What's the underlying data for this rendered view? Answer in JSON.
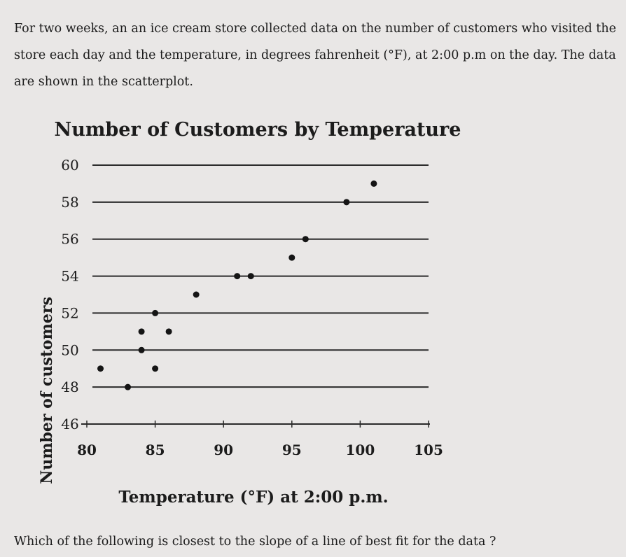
{
  "intro_text": "For two weeks, an an ice cream store collected data on the number of customers who visited the store each day and the temperature, in degrees fahrenheit (°F), at 2:00 p.m on the day. The data are shown in the scatterplot.",
  "question_text": "Which of the following is closest to the slope of a line of best fit for the data ?",
  "chart_data": {
    "type": "scatter",
    "title": "Number of Customers by Temperature",
    "xlabel": "Temperature (°F) at 2:00 p.m.",
    "ylabel": "Number of customers",
    "xlim": [
      80,
      105
    ],
    "ylim": [
      46,
      60
    ],
    "xticks": [
      "80",
      "85",
      "90",
      "95",
      "100",
      "105"
    ],
    "yticks": [
      "46",
      "48",
      "50",
      "52",
      "54",
      "56",
      "58",
      "60"
    ],
    "grid": "horizontal",
    "points": [
      {
        "x": 81,
        "y": 49
      },
      {
        "x": 83,
        "y": 48
      },
      {
        "x": 84,
        "y": 50
      },
      {
        "x": 84,
        "y": 51
      },
      {
        "x": 85,
        "y": 49
      },
      {
        "x": 85,
        "y": 52
      },
      {
        "x": 86,
        "y": 51
      },
      {
        "x": 88,
        "y": 53
      },
      {
        "x": 91,
        "y": 54
      },
      {
        "x": 92,
        "y": 54
      },
      {
        "x": 95,
        "y": 55
      },
      {
        "x": 96,
        "y": 56
      },
      {
        "x": 99,
        "y": 58
      },
      {
        "x": 101,
        "y": 59
      }
    ]
  }
}
